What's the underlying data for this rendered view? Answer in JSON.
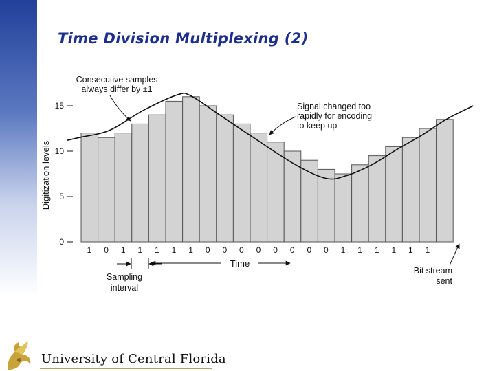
{
  "slide": {
    "title": "Time Division Multiplexing (2)",
    "footer_text": "University of Central Florida"
  },
  "colors": {
    "title": "#1c2f8c",
    "bar_fill": "#d3d3d3",
    "bar_stroke": "#555555",
    "band_top": "#22409a",
    "footer_rule": "#b7a15e"
  },
  "chart_data": {
    "type": "bar",
    "ylabel": "Digitization levels",
    "xlabel": "Time",
    "ylim": [
      0,
      16.5
    ],
    "yticks": [
      "0",
      "5",
      "10",
      "15"
    ],
    "values": [
      12,
      11.5,
      12,
      13,
      14,
      15.5,
      16,
      15,
      14,
      13,
      12,
      11,
      10,
      9,
      8,
      7.5,
      8.5,
      9.5,
      10.5,
      11.5,
      12.5,
      13.5
    ],
    "bits": [
      "1",
      "0",
      "1",
      "1",
      "1",
      "1",
      "1",
      "0",
      "0",
      "0",
      "0",
      "0",
      "0",
      "0",
      "0",
      "1",
      "1",
      "1",
      "1",
      "1",
      "1"
    ],
    "signal": [
      [
        0,
        11.2
      ],
      [
        0.7,
        11.5
      ],
      [
        2.5,
        12.3
      ],
      [
        4.5,
        14.5
      ],
      [
        6.5,
        16.2
      ],
      [
        7.3,
        16.1
      ],
      [
        9,
        14
      ],
      [
        11,
        11.5
      ],
      [
        13.5,
        8.5
      ],
      [
        15.3,
        7
      ],
      [
        16.5,
        7.3
      ],
      [
        18,
        8.5
      ],
      [
        19.5,
        10.2
      ],
      [
        21,
        11.8
      ],
      [
        22.4,
        13.5
      ],
      [
        24,
        15
      ]
    ],
    "annotations": {
      "consecutive_line1": "Consecutive samples",
      "consecutive_line2": "always differ by ±1",
      "signal_line1": "Signal changed too",
      "signal_line2": "rapidly for encoding",
      "signal_line3": "to keep up",
      "sampling_line1": "Sampling",
      "sampling_line2": "interval",
      "bitstream_line1": "Bit stream",
      "bitstream_line2": "sent"
    }
  }
}
